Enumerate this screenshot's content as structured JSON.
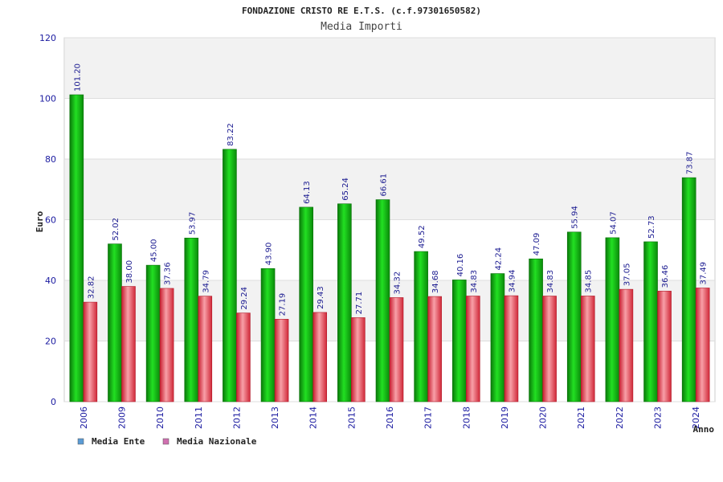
{
  "chart_data": {
    "type": "bar",
    "title": "FONDAZIONE CRISTO RE E.T.S. (c.f.97301650582)",
    "subtitle": "Media Importi",
    "xlabel": "Anno",
    "ylabel": "Euro",
    "ylim": [
      0,
      120
    ],
    "yticks": [
      0,
      20,
      40,
      60,
      80,
      100,
      120
    ],
    "grid": true,
    "legend_position": "bottom-left",
    "categories": [
      "2006",
      "2009",
      "2010",
      "2011",
      "2012",
      "2013",
      "2014",
      "2015",
      "2016",
      "2017",
      "2018",
      "2019",
      "2020",
      "2021",
      "2022",
      "2023",
      "2024"
    ],
    "series": [
      {
        "name": "Media Ente",
        "bar_color": "#10b010",
        "legend_color": "#5b9bd5",
        "values": [
          101.2,
          52.02,
          45.0,
          53.97,
          83.22,
          43.9,
          64.13,
          65.24,
          66.61,
          49.52,
          40.16,
          42.24,
          47.09,
          55.94,
          54.07,
          52.73,
          73.87
        ],
        "labels": [
          "101.20",
          "52.02",
          "45.00",
          "53.97",
          "83.22",
          "43.90",
          "64.13",
          "65.24",
          "66.61",
          "49.52",
          "40.16",
          "42.24",
          "47.09",
          "55.94",
          "54.07",
          "52.73",
          "73.87"
        ]
      },
      {
        "name": "Media Nazionale",
        "bar_color": "#e84050",
        "legend_color": "#d070b0",
        "values": [
          32.82,
          38.0,
          37.36,
          34.79,
          29.24,
          27.19,
          29.43,
          27.71,
          34.32,
          34.68,
          34.83,
          34.94,
          34.83,
          34.85,
          37.05,
          36.46,
          37.49
        ],
        "labels": [
          "32.82",
          "38.00",
          "37.36",
          "34.79",
          "29.24",
          "27.19",
          "29.43",
          "27.71",
          "34.32",
          "34.68",
          "34.83",
          "34.94",
          "34.83",
          "34.85",
          "37.05",
          "36.46",
          "37.49"
        ]
      }
    ]
  }
}
